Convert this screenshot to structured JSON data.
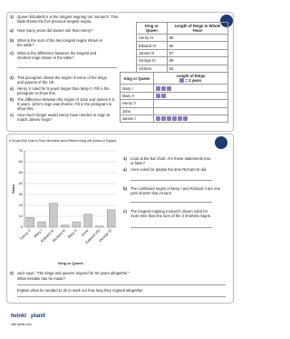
{
  "section1": {
    "intro": "Queen Elizabeth II is the longest reigning UK monarch. This table shows the five previous longest reigns.",
    "number": "1)",
    "questions": [
      {
        "label": "a)",
        "text": "How many years did James rule than Henry?"
      },
      {
        "label": "b)",
        "text": "What is the sum of the two longest reigns shown in the table?"
      },
      {
        "label": "c)",
        "text": "What is the difference between the longest and shortest reign shown in the table?"
      }
    ],
    "table": {
      "headers": [
        "King or Queen",
        "Length of Reign in Whole Years"
      ],
      "rows": [
        [
          "Henry III",
          "56"
        ],
        [
          "Edward III",
          "50"
        ],
        [
          "James VI",
          "57"
        ],
        [
          "George III",
          "59"
        ],
        [
          "Victoria",
          "63"
        ]
      ]
    }
  },
  "section2": {
    "number": "2)",
    "intro": "This pictogram shows the reigns of some of the kings and queens of the UK.",
    "questions": [
      {
        "label": "a)",
        "text": "Henry V ruled for 9 years longer than Mary II. Fill in the pictogram to show this."
      },
      {
        "label": "b)",
        "text": "The difference between the reigns of John and James II is 9 years. John's reign was shorter. Fill in the pictogram to show this."
      },
      {
        "label": "c)",
        "text": "How much longer would Henry have needed to reign to match James' reign?"
      }
    ],
    "pictogram": {
      "header": "King or Queen",
      "title": "Length of Reign",
      "key": "= 2 years",
      "rows": [
        "Mary I",
        "Mary II",
        "Henry V",
        "John",
        "James I"
      ],
      "icons": [
        3,
        2,
        0,
        0,
        6
      ]
    }
  },
  "chart_data": {
    "type": "bar",
    "title": "A Grouped Bar Chart to Show Information about Different Kings and Queens of England",
    "categories": [
      "Henry V",
      "Mary I",
      "Edward IV",
      "Richard III",
      "Mary II",
      "Anne",
      "Edward VIII",
      "George VI"
    ],
    "values": [
      9,
      5,
      22,
      2,
      5,
      12,
      1,
      16
    ],
    "color": "#c9c9c9",
    "ylim": [
      0,
      70
    ],
    "yticks": [
      0,
      10,
      20,
      30,
      40,
      50,
      60,
      70
    ],
    "grid": true,
    "ylabel": "Years",
    "xlabel": "King or Queen"
  },
  "section3": {
    "number": "1)",
    "intro": "Look at the bar chart. Are these statements true or false?",
    "questions": [
      {
        "label": "a)",
        "text": "Anne ruled for double the time Richard III did."
      },
      {
        "label": "b)",
        "text": "The combined reigns of Mary I and Richard II are one year shorter than Anne's."
      },
      {
        "label": "c)",
        "text": "The longest reigning monarch shown ruled for more time than the sum of the 4 shortest reigns."
      }
    ],
    "q2": {
      "number": "2)",
      "text": "Jack says, \"The kings and queens reigned for 50 years altogether.\"",
      "sub1": "What mistake has he made?",
      "sub2": "Explain what he needed to do to work out how long they reigned altogether."
    }
  },
  "footer": {
    "brand": "twinkl",
    "product": "planit",
    "url": "visit twinkl.com"
  }
}
